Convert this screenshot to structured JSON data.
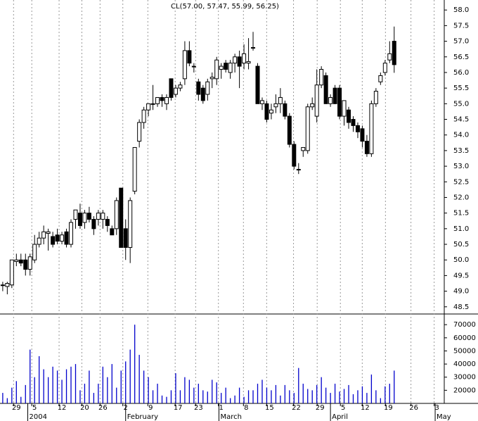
{
  "chart_data": {
    "type": "candlestick",
    "title": "CL(57.00, 57.47, 55.99, 56.25)",
    "open": [
      49.2,
      49.15,
      49.2,
      49.95,
      50.0,
      50.0,
      49.7,
      50.0,
      50.5,
      50.7,
      50.85,
      50.75,
      50.8,
      50.6,
      50.9,
      50.5,
      51.3,
      51.5,
      51.2,
      51.5,
      51.3,
      51.3,
      51.3,
      51.3,
      51.0,
      51.0,
      52.3,
      51.0,
      50.4,
      52.2,
      53.8,
      54.4,
      54.8,
      55.0,
      55.0,
      55.2,
      55.0,
      55.8,
      55.3,
      55.5,
      55.8,
      56.7,
      56.2,
      55.7,
      55.5,
      55.3,
      55.8,
      55.8,
      56.1,
      56.3,
      56.0,
      56.3,
      56.5,
      56.3,
      56.3,
      56.8,
      56.2,
      55.0,
      55.0,
      54.7,
      54.9,
      55.0,
      55.0,
      54.6,
      53.7,
      52.9,
      53.5,
      53.5,
      54.9,
      54.6,
      55.6,
      55.9,
      55.0,
      55.5,
      55.5,
      54.6,
      54.8,
      54.5,
      54.3,
      54.2,
      53.8,
      53.4,
      55.0,
      55.7,
      56.0,
      56.4,
      57.0
    ],
    "high": [
      49.3,
      49.3,
      50.0,
      50.2,
      50.2,
      50.2,
      50.2,
      50.8,
      50.9,
      51.1,
      51.0,
      50.9,
      51.0,
      50.9,
      51.0,
      51.3,
      51.6,
      51.8,
      51.6,
      51.7,
      51.4,
      51.6,
      51.6,
      51.4,
      51.1,
      52.0,
      52.3,
      51.3,
      52.0,
      53.6,
      54.5,
      54.9,
      55.0,
      55.6,
      55.2,
      55.3,
      55.3,
      55.8,
      55.6,
      55.7,
      57.0,
      57.0,
      56.3,
      55.8,
      55.6,
      55.8,
      56.0,
      56.5,
      56.3,
      56.4,
      56.4,
      56.6,
      56.7,
      56.9,
      57.1,
      57.3,
      56.3,
      55.2,
      55.1,
      55.0,
      55.3,
      55.5,
      55.1,
      54.7,
      53.8,
      53.1,
      53.6,
      55.0,
      55.2,
      56.1,
      56.2,
      56.0,
      55.3,
      55.6,
      55.6,
      55.1,
      54.9,
      54.6,
      54.4,
      54.3,
      54.0,
      55.1,
      55.5,
      56.0,
      56.4,
      57.0,
      57.47
    ],
    "low": [
      49.0,
      48.9,
      49.1,
      49.8,
      49.8,
      49.5,
      49.5,
      49.9,
      50.4,
      50.5,
      50.3,
      50.4,
      50.5,
      50.5,
      50.4,
      50.4,
      51.0,
      51.0,
      51.0,
      51.2,
      50.8,
      51.1,
      51.0,
      50.9,
      50.8,
      50.8,
      50.4,
      50.0,
      49.9,
      52.1,
      53.6,
      54.2,
      54.6,
      54.8,
      54.9,
      54.9,
      54.8,
      55.1,
      55.2,
      55.4,
      55.6,
      56.2,
      56.0,
      55.1,
      55.0,
      55.1,
      55.5,
      55.6,
      55.8,
      56.0,
      55.8,
      56.0,
      55.5,
      56.1,
      56.1,
      56.7,
      55.0,
      54.8,
      54.4,
      54.5,
      54.7,
      54.7,
      54.5,
      53.6,
      52.9,
      52.75,
      53.3,
      53.4,
      54.8,
      54.4,
      55.5,
      55.0,
      54.9,
      55.0,
      54.5,
      54.3,
      54.2,
      54.1,
      53.9,
      53.6,
      53.3,
      53.3,
      54.9,
      55.6,
      55.9,
      56.3,
      55.99
    ],
    "close": [
      49.2,
      49.25,
      50.0,
      50.0,
      49.9,
      49.7,
      50.1,
      50.5,
      50.7,
      50.9,
      50.9,
      50.5,
      50.6,
      50.8,
      50.5,
      51.2,
      51.6,
      51.1,
      51.5,
      51.3,
      51.0,
      51.5,
      51.5,
      51.1,
      50.8,
      51.9,
      50.4,
      50.4,
      51.9,
      53.6,
      54.4,
      54.8,
      55.0,
      55.0,
      55.2,
      55.1,
      55.2,
      55.2,
      55.5,
      55.6,
      56.7,
      56.3,
      56.2,
      55.3,
      55.1,
      55.7,
      55.85,
      56.4,
      56.2,
      56.1,
      56.3,
      56.5,
      56.2,
      56.6,
      56.35,
      56.8,
      55.0,
      55.1,
      54.5,
      54.8,
      55.0,
      55.2,
      54.6,
      53.7,
      53.0,
      52.9,
      53.6,
      54.9,
      55.0,
      55.6,
      56.1,
      55.0,
      55.2,
      55.0,
      54.6,
      55.1,
      54.4,
      54.3,
      54.1,
      53.8,
      53.4,
      55.0,
      55.4,
      55.9,
      56.3,
      56.6,
      56.25
    ],
    "volume": [
      18000,
      14000,
      22000,
      27000,
      15000,
      24000,
      51000,
      30000,
      46000,
      36000,
      30000,
      38000,
      35000,
      28000,
      36000,
      38000,
      40000,
      20000,
      25000,
      35000,
      18000,
      25000,
      38000,
      30000,
      40000,
      22000,
      35000,
      42000,
      51000,
      70000,
      47000,
      35000,
      30000,
      20000,
      25000,
      16000,
      15000,
      20000,
      33000,
      20000,
      30000,
      28000,
      22000,
      25000,
      20000,
      19000,
      28000,
      26000,
      18000,
      22000,
      14000,
      16000,
      22000,
      15000,
      20000,
      20000,
      25000,
      28000,
      22000,
      20000,
      24000,
      16000,
      24000,
      20000,
      18000,
      37000,
      25000,
      21000,
      20000,
      24000,
      30000,
      22000,
      18000,
      25000,
      19000,
      21000,
      24000,
      17000,
      20000,
      23000,
      18000,
      32000,
      20000,
      14000,
      23000,
      25000,
      35000
    ],
    "up_color": "#ffffff",
    "down_color": "#000000",
    "edge_color": "#000000",
    "volume_color": "#0000cc",
    "xlim": [
      -0.6,
      97
    ],
    "ylim": [
      48.27,
      58.32
    ],
    "yticks": [
      48.5,
      {
        "value": 49,
        "label": "49.0"
      },
      49.5,
      {
        "value": 50,
        "label": "50.0"
      },
      50.5,
      {
        "value": 51,
        "label": "51.0"
      },
      51.5,
      {
        "value": 52,
        "label": "52.0"
      },
      52.5,
      {
        "value": 53,
        "label": "53.0"
      },
      53.5,
      {
        "value": 54,
        "label": "54.0"
      },
      54.5,
      {
        "value": 55,
        "label": "55.0"
      },
      55.5,
      {
        "value": 56,
        "label": "56.0"
      },
      56.5,
      {
        "value": 57,
        "label": "57.0"
      },
      57.5,
      {
        "value": 58,
        "label": "58.0"
      }
    ],
    "y2lim": [
      10000,
      76000
    ],
    "y2ticks": [
      20000,
      30000,
      40000,
      50000,
      60000,
      70000
    ],
    "xticks": [
      {
        "value": 3,
        "label": "29"
      },
      {
        "value": 7,
        "label": "5"
      },
      {
        "value": 13,
        "label": "12"
      },
      {
        "value": 18,
        "label": "20"
      },
      {
        "value": 22,
        "label": "26"
      },
      {
        "value": 27,
        "label": "2"
      },
      {
        "value": 32.5,
        "label": "9"
      },
      {
        "value": 38.5,
        "label": "17"
      },
      {
        "value": 43,
        "label": "23"
      },
      {
        "value": 48,
        "label": "1"
      },
      {
        "value": 53.5,
        "label": "8"
      },
      {
        "value": 58.6,
        "label": "15"
      },
      {
        "value": 64.5,
        "label": "22"
      },
      {
        "value": 69.7,
        "label": "29"
      },
      {
        "value": 74.8,
        "label": "5"
      },
      {
        "value": 79.6,
        "label": "12"
      },
      {
        "value": 84.7,
        "label": "19"
      },
      {
        "value": 90.3,
        "label": "26"
      },
      {
        "value": 95.4,
        "label": "3"
      }
    ],
    "month_ticks": [
      {
        "value": 5.5,
        "label": "2004"
      },
      {
        "value": 27,
        "label": "February"
      },
      {
        "value": 47.5,
        "label": "March"
      },
      {
        "value": 72,
        "label": "April"
      },
      {
        "value": 95,
        "label": "May"
      }
    ],
    "grid": true
  }
}
